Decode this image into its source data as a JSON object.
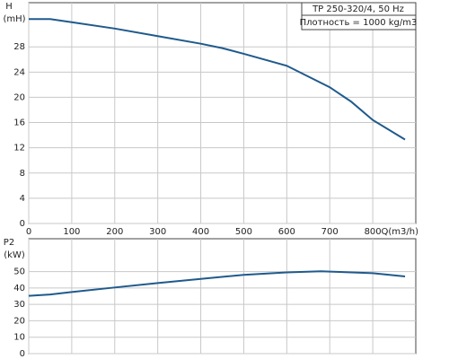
{
  "chart_data": [
    {
      "type": "line",
      "ylabel": "H",
      "yunit": "(mH)",
      "xlabel": "Q(m3/h)",
      "annotations": [
        "TP 250-320/4, 50 Hz",
        "Плотность = 1000 kg/m3"
      ],
      "x": [
        0,
        50,
        100,
        200,
        300,
        400,
        450,
        500,
        600,
        700,
        750,
        800,
        875
      ],
      "values": [
        32.4,
        32.4,
        31.9,
        30.9,
        29.7,
        28.5,
        27.8,
        26.9,
        25,
        21.6,
        19.3,
        16.4,
        13.3
      ],
      "color": "#1f5a8c",
      "xlim": [
        0,
        900
      ],
      "ylim": [
        0,
        35
      ],
      "xticks": [
        0,
        100,
        200,
        300,
        400,
        500,
        600,
        700,
        800
      ],
      "yticks": [
        0,
        4,
        8,
        12,
        16,
        20,
        24,
        28
      ],
      "grid": true
    },
    {
      "type": "line",
      "ylabel": "P2",
      "yunit": "(kW)",
      "x": [
        0,
        50,
        100,
        200,
        300,
        400,
        500,
        600,
        680,
        700,
        800,
        875
      ],
      "values": [
        35.2,
        36,
        37.5,
        40.3,
        43,
        45.5,
        48,
        49.5,
        50.2,
        50,
        49,
        47
      ],
      "color": "#1f5a8c",
      "xlim": [
        0,
        900
      ],
      "ylim": [
        0,
        70
      ],
      "xticks": [
        0,
        100,
        200,
        300,
        400,
        500,
        600,
        700,
        800
      ],
      "yticks": [
        0,
        10,
        20,
        30,
        40,
        50
      ],
      "grid": true
    }
  ]
}
